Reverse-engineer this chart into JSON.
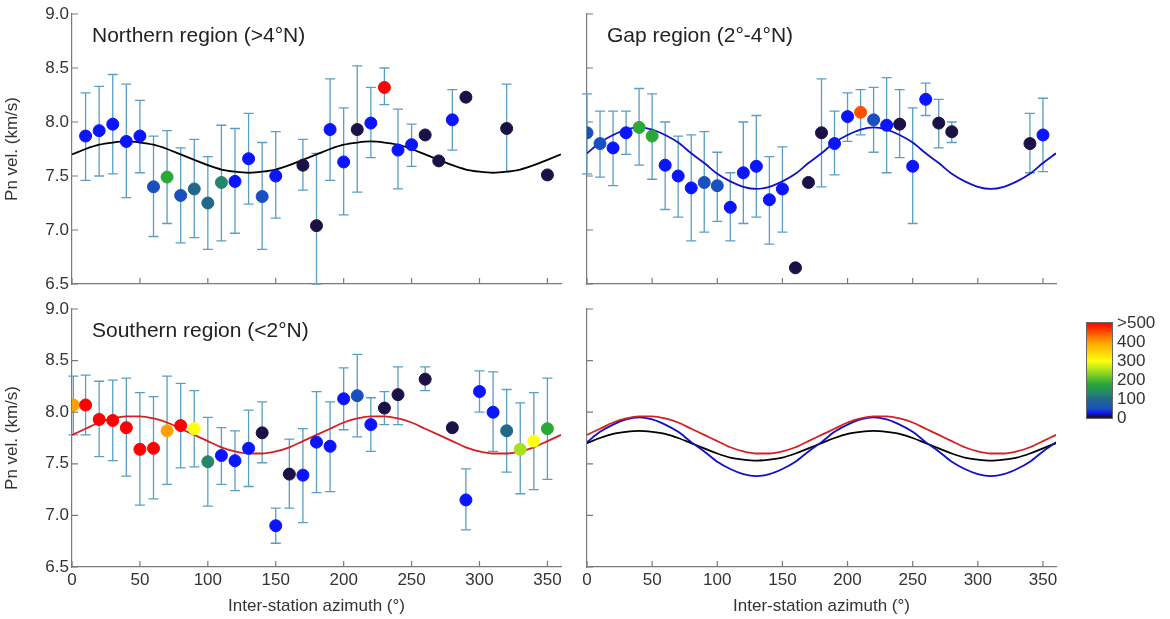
{
  "chart_data": [
    {
      "type": "scatter",
      "title": "Northern region (>4°N)",
      "ylabel": "Pn vel. (km/s)",
      "xlim": [
        0,
        360
      ],
      "xticks": [
        0,
        50,
        100,
        150,
        200,
        250,
        300,
        350
      ],
      "ylim": [
        6.5,
        9
      ],
      "yticks": [
        6.5,
        {
          "value": 7,
          "label": "7.0"
        },
        7.5,
        {
          "value": 8,
          "label": "8.0"
        },
        8.5,
        {
          "value": 9,
          "label": "9.0"
        }
      ],
      "tick_labels": "y",
      "series": [
        {
          "type": "scatter",
          "marker": "circle",
          "x": [
            10,
            20,
            30,
            40,
            50,
            60,
            70,
            80,
            90,
            100,
            110,
            120,
            130,
            140,
            150,
            170,
            180,
            190,
            200,
            210,
            220,
            230,
            240,
            250,
            260,
            270,
            280,
            290,
            320,
            350
          ],
          "values": [
            7.87,
            7.92,
            7.98,
            7.82,
            7.87,
            7.4,
            7.49,
            7.32,
            7.38,
            7.25,
            7.44,
            7.45,
            7.66,
            7.31,
            7.5,
            7.6,
            7.04,
            7.93,
            7.63,
            7.93,
            7.99,
            8.32,
            7.74,
            7.79,
            7.88,
            7.64,
            8.02,
            8.23,
            7.94,
            7.51
          ],
          "errors": [
            [
              7.46,
              8.27
            ],
            [
              7.5,
              8.33
            ],
            [
              7.52,
              8.44
            ],
            [
              7.3,
              8.35
            ],
            [
              7.53,
              8.2
            ],
            [
              6.94,
              7.87
            ],
            [
              7.06,
              7.92
            ],
            [
              6.88,
              7.76
            ],
            [
              6.93,
              7.84
            ],
            [
              6.82,
              7.68
            ],
            [
              6.9,
              7.97
            ],
            [
              6.97,
              7.94
            ],
            [
              7.24,
              8.08
            ],
            [
              6.82,
              7.81
            ],
            [
              7.11,
              7.91
            ],
            [
              7.37,
              7.84
            ],
            [
              6.5,
              7.71
            ],
            [
              7.46,
              8.4
            ],
            [
              7.14,
              8.13
            ],
            [
              7.35,
              8.52
            ],
            [
              7.67,
              8.32
            ],
            [
              8.16,
              8.5
            ],
            [
              7.38,
              8.12
            ],
            [
              7.59,
              7.98
            ],
            null,
            null,
            [
              7.74,
              8.3
            ],
            null,
            [
              7.54,
              8.35
            ],
            null
          ],
          "colors": [
            "#0a14ff",
            "#0a14ff",
            "#0a14ff",
            "#0a14ff",
            "#0a14ff",
            "#1850c0",
            "#2aa838",
            "#1850c0",
            "#22688a",
            "#22688a",
            "#22886a",
            "#0a14ff",
            "#0a14ff",
            "#1850c0",
            "#0a14ff",
            "#1b1146",
            "#1b1146",
            "#0a14ff",
            "#0a14ff",
            "#1b1146",
            "#0a14ff",
            "#ff0000",
            "#0a14ff",
            "#0a14ff",
            "#1b1146",
            "#1b1146",
            "#0a14ff",
            "#1b1146",
            "#1b1146",
            "#1b1146"
          ]
        },
        {
          "type": "line",
          "color": "#000000",
          "x": [
            0,
            10,
            20,
            30,
            40,
            50,
            60,
            70,
            80,
            90,
            100,
            110,
            120,
            130,
            140,
            150,
            160,
            170,
            180,
            190,
            200,
            210,
            220,
            230,
            240,
            250,
            260,
            270,
            280,
            290,
            300,
            310,
            320,
            330,
            340,
            350,
            360
          ],
          "values": [
            7.7,
            7.75,
            7.79,
            7.81,
            7.82,
            7.81,
            7.79,
            7.75,
            7.7,
            7.65,
            7.6,
            7.56,
            7.54,
            7.53,
            7.54,
            7.56,
            7.6,
            7.65,
            7.7,
            7.75,
            7.79,
            7.81,
            7.82,
            7.81,
            7.79,
            7.75,
            7.7,
            7.65,
            7.6,
            7.56,
            7.54,
            7.53,
            7.54,
            7.56,
            7.6,
            7.65,
            7.7
          ]
        }
      ]
    },
    {
      "type": "scatter",
      "title": "Gap region (2°-4°N)",
      "xlim": [
        0,
        360
      ],
      "xticks": [
        0,
        50,
        100,
        150,
        200,
        250,
        300,
        350
      ],
      "ylim": [
        6.5,
        9
      ],
      "yticks": [
        6.5,
        7,
        7.5,
        8,
        8.5,
        9
      ],
      "tick_labels": false,
      "clim": [
        0,
        500
      ],
      "cticks": [
        0,
        100,
        200,
        300,
        400,
        {
          "value": 500,
          "label": ">500"
        }
      ],
      "series": [
        {
          "type": "scatter",
          "marker": "circle",
          "x": [
            0,
            10,
            20,
            30,
            40,
            50,
            60,
            70,
            80,
            90,
            100,
            110,
            120,
            130,
            140,
            150,
            160,
            170,
            180,
            190,
            200,
            210,
            220,
            230,
            240,
            250,
            260,
            270,
            280,
            340,
            350
          ],
          "values": [
            7.9,
            7.8,
            7.76,
            7.9,
            7.95,
            7.87,
            7.6,
            7.5,
            7.39,
            7.44,
            7.41,
            7.21,
            7.53,
            7.59,
            7.28,
            7.38,
            6.65,
            7.44,
            7.9,
            7.8,
            8.05,
            8.09,
            8.02,
            7.97,
            7.98,
            7.59,
            8.21,
            7.99,
            7.91,
            7.8,
            7.88
          ],
          "errors": [
            [
              7.52,
              8.26
            ],
            [
              7.49,
              8.1
            ],
            [
              7.41,
              8.1
            ],
            [
              7.7,
              8.1
            ],
            [
              7.6,
              8.31
            ],
            [
              7.47,
              8.26
            ],
            [
              7.19,
              8.0
            ],
            [
              7.12,
              7.87
            ],
            [
              6.9,
              7.88
            ],
            [
              6.98,
              7.91
            ],
            [
              7.08,
              7.72
            ],
            [
              6.9,
              7.53
            ],
            [
              7.06,
              8.0
            ],
            [
              7.12,
              8.06
            ],
            [
              6.87,
              7.68
            ],
            [
              6.98,
              7.77
            ],
            null,
            null,
            [
              7.4,
              8.4
            ],
            [
              7.51,
              8.1
            ],
            [
              7.82,
              8.27
            ],
            [
              7.88,
              8.3
            ],
            [
              7.72,
              8.32
            ],
            [
              7.53,
              8.41
            ],
            [
              7.67,
              8.3
            ],
            [
              7.06,
              8.13
            ],
            [
              8.06,
              8.36
            ],
            [
              7.76,
              8.21
            ],
            [
              7.81,
              8.0
            ],
            [
              7.53,
              8.08
            ],
            [
              7.54,
              8.22
            ]
          ],
          "cvalues": [
            50,
            50,
            25,
            25,
            180,
            180,
            25,
            25,
            25,
            50,
            50,
            25,
            25,
            25,
            25,
            25,
            0,
            0,
            0,
            25,
            25,
            450,
            50,
            25,
            0,
            25,
            25,
            0,
            0,
            0,
            25
          ],
          "colors": [
            "#1850c0",
            "#1850c0",
            "#0a14ff",
            "#0a14ff",
            "#2aa838",
            "#2aa838",
            "#0a14ff",
            "#0a14ff",
            "#0a14ff",
            "#1850c0",
            "#1850c0",
            "#0a14ff",
            "#0a14ff",
            "#0a14ff",
            "#0a14ff",
            "#0a14ff",
            "#1b1146",
            "#1b1146",
            "#1b1146",
            "#0a14ff",
            "#0a14ff",
            "#ff5000",
            "#1850c0",
            "#0a14ff",
            "#1b1146",
            "#0a14ff",
            "#0a14ff",
            "#1b1146",
            "#1b1146",
            "#1b1146",
            "#0a14ff"
          ]
        },
        {
          "type": "line",
          "color": "#1010c8",
          "x": [
            0,
            10,
            20,
            30,
            40,
            50,
            60,
            70,
            80,
            90,
            100,
            110,
            120,
            130,
            140,
            150,
            160,
            170,
            180,
            190,
            200,
            210,
            220,
            230,
            240,
            250,
            260,
            270,
            280,
            290,
            300,
            310,
            320,
            330,
            340,
            350,
            360
          ],
          "values": [
            7.71,
            7.81,
            7.88,
            7.93,
            7.95,
            7.93,
            7.88,
            7.81,
            7.71,
            7.62,
            7.52,
            7.45,
            7.4,
            7.38,
            7.4,
            7.45,
            7.52,
            7.62,
            7.71,
            7.81,
            7.88,
            7.93,
            7.95,
            7.93,
            7.88,
            7.81,
            7.71,
            7.62,
            7.52,
            7.45,
            7.4,
            7.38,
            7.4,
            7.45,
            7.52,
            7.62,
            7.71
          ]
        }
      ]
    },
    {
      "type": "scatter",
      "title": "Southern region (<2°N)",
      "xlabel": "Inter-station azimuth (°)",
      "ylabel": "Pn vel. (km/s)",
      "xlim": [
        0,
        360
      ],
      "xticks": [
        0,
        50,
        100,
        150,
        200,
        250,
        300,
        350
      ],
      "ylim": [
        6.5,
        9
      ],
      "yticks": [
        6.5,
        {
          "value": 7,
          "label": "7.0"
        },
        7.5,
        {
          "value": 8,
          "label": "8.0"
        },
        8.5,
        {
          "value": 9,
          "label": "9.0"
        }
      ],
      "series": [
        {
          "type": "scatter",
          "marker": "circle",
          "x": [
            1,
            10,
            20,
            30,
            40,
            50,
            60,
            70,
            80,
            90,
            100,
            110,
            120,
            130,
            140,
            150,
            160,
            170,
            180,
            190,
            200,
            210,
            220,
            230,
            240,
            260,
            280,
            290,
            300,
            310,
            320,
            330,
            340,
            350
          ],
          "values": [
            8.07,
            8.07,
            7.93,
            7.92,
            7.85,
            7.64,
            7.65,
            7.82,
            7.87,
            7.84,
            7.52,
            7.58,
            7.53,
            7.65,
            7.8,
            6.9,
            7.4,
            7.39,
            7.71,
            7.67,
            8.13,
            8.16,
            7.88,
            8.04,
            8.17,
            8.32,
            7.85,
            7.15,
            8.2,
            8.0,
            7.82,
            7.64,
            7.72,
            7.84
          ],
          "errors": [
            [
              7.78,
              8.35
            ],
            [
              7.78,
              8.36
            ],
            [
              7.57,
              8.3
            ],
            [
              7.53,
              8.31
            ],
            [
              7.38,
              8.33
            ],
            [
              7.1,
              8.19
            ],
            [
              7.16,
              8.15
            ],
            [
              7.3,
              8.35
            ],
            [
              7.46,
              8.28
            ],
            [
              7.47,
              8.21
            ],
            [
              7.09,
              7.95
            ],
            [
              7.3,
              7.85
            ],
            [
              7.24,
              7.82
            ],
            [
              7.28,
              8.02
            ],
            [
              7.51,
              8.1
            ],
            [
              6.73,
              7.07
            ],
            [
              7.07,
              7.74
            ],
            [
              6.93,
              7.84
            ],
            [
              7.22,
              8.2
            ],
            [
              7.23,
              8.1
            ],
            [
              7.83,
              8.43
            ],
            [
              7.76,
              8.56
            ],
            [
              7.62,
              8.14
            ],
            [
              7.88,
              8.2
            ],
            [
              7.88,
              8.44
            ],
            [
              8.21,
              8.44
            ],
            null,
            [
              6.86,
              7.45
            ],
            [
              8.0,
              8.4
            ],
            [
              7.62,
              8.39
            ],
            [
              7.42,
              8.22
            ],
            [
              7.21,
              8.09
            ],
            [
              7.25,
              8.19
            ],
            [
              7.35,
              8.33
            ]
          ],
          "colors": [
            "#ffa000",
            "#ff0000",
            "#ff0000",
            "#ff0000",
            "#ff0000",
            "#ff0000",
            "#ff0000",
            "#ffa000",
            "#ff0000",
            "#ffff10",
            "#22886a",
            "#0a14ff",
            "#0a14ff",
            "#0a14ff",
            "#1b1146",
            "#0a14ff",
            "#1b1146",
            "#0a14ff",
            "#0a14ff",
            "#0a14ff",
            "#0a14ff",
            "#1850c0",
            "#0a14ff",
            "#1b1146",
            "#1b1146",
            "#1b1146",
            "#1b1146",
            "#0a14ff",
            "#0a14ff",
            "#0a14ff",
            "#22688a",
            "#a8e020",
            "#ffff10",
            "#2aa838"
          ]
        },
        {
          "type": "line",
          "color": "#d42020",
          "x": [
            0,
            10,
            20,
            30,
            40,
            50,
            60,
            70,
            80,
            90,
            100,
            110,
            120,
            130,
            140,
            150,
            160,
            170,
            180,
            190,
            200,
            210,
            220,
            230,
            240,
            250,
            260,
            270,
            280,
            290,
            300,
            310,
            320,
            330,
            340,
            350,
            360
          ],
          "values": [
            7.78,
            7.84,
            7.9,
            7.94,
            7.96,
            7.96,
            7.94,
            7.9,
            7.84,
            7.78,
            7.72,
            7.66,
            7.62,
            7.6,
            7.6,
            7.62,
            7.66,
            7.72,
            7.78,
            7.84,
            7.9,
            7.94,
            7.96,
            7.96,
            7.94,
            7.9,
            7.84,
            7.78,
            7.72,
            7.66,
            7.62,
            7.6,
            7.6,
            7.62,
            7.66,
            7.72,
            7.78
          ]
        }
      ]
    },
    {
      "type": "line",
      "xlabel": "Inter-station azimuth (°)",
      "xlim": [
        0,
        360
      ],
      "xticks": [
        0,
        50,
        100,
        150,
        200,
        250,
        300,
        350
      ],
      "ylim": [
        6.5,
        9
      ],
      "yticks": [
        6.5,
        7,
        7.5,
        8,
        8.5,
        9
      ],
      "tick_labels": "x",
      "series": [
        {
          "color": "#d42020",
          "x": [
            0,
            10,
            20,
            30,
            40,
            50,
            60,
            70,
            80,
            90,
            100,
            110,
            120,
            130,
            140,
            150,
            160,
            170,
            180,
            190,
            200,
            210,
            220,
            230,
            240,
            250,
            260,
            270,
            280,
            290,
            300,
            310,
            320,
            330,
            340,
            350,
            360
          ],
          "values": [
            7.78,
            7.84,
            7.9,
            7.94,
            7.96,
            7.96,
            7.94,
            7.9,
            7.84,
            7.78,
            7.72,
            7.66,
            7.62,
            7.6,
            7.6,
            7.62,
            7.66,
            7.72,
            7.78,
            7.84,
            7.9,
            7.94,
            7.96,
            7.96,
            7.94,
            7.9,
            7.84,
            7.78,
            7.72,
            7.66,
            7.62,
            7.6,
            7.6,
            7.62,
            7.66,
            7.72,
            7.78
          ]
        },
        {
          "color": "#1010c8",
          "x": [
            0,
            10,
            20,
            30,
            40,
            50,
            60,
            70,
            80,
            90,
            100,
            110,
            120,
            130,
            140,
            150,
            160,
            170,
            180,
            190,
            200,
            210,
            220,
            230,
            240,
            250,
            260,
            270,
            280,
            290,
            300,
            310,
            320,
            330,
            340,
            350,
            360
          ],
          "values": [
            7.71,
            7.81,
            7.88,
            7.93,
            7.95,
            7.93,
            7.88,
            7.81,
            7.71,
            7.62,
            7.52,
            7.45,
            7.4,
            7.38,
            7.4,
            7.45,
            7.52,
            7.62,
            7.71,
            7.81,
            7.88,
            7.93,
            7.95,
            7.93,
            7.88,
            7.81,
            7.71,
            7.62,
            7.52,
            7.45,
            7.4,
            7.38,
            7.4,
            7.45,
            7.52,
            7.62,
            7.71
          ]
        },
        {
          "color": "#000000",
          "x": [
            0,
            10,
            20,
            30,
            40,
            50,
            60,
            70,
            80,
            90,
            100,
            110,
            120,
            130,
            140,
            150,
            160,
            170,
            180,
            190,
            200,
            210,
            220,
            230,
            240,
            250,
            260,
            270,
            280,
            290,
            300,
            310,
            320,
            330,
            340,
            350,
            360
          ],
          "values": [
            7.7,
            7.75,
            7.79,
            7.81,
            7.82,
            7.81,
            7.79,
            7.75,
            7.7,
            7.65,
            7.6,
            7.56,
            7.54,
            7.53,
            7.54,
            7.56,
            7.6,
            7.65,
            7.7,
            7.75,
            7.79,
            7.81,
            7.82,
            7.81,
            7.79,
            7.75,
            7.7,
            7.65,
            7.6,
            7.56,
            7.54,
            7.53,
            7.54,
            7.56,
            7.6,
            7.65,
            7.7
          ]
        }
      ]
    }
  ]
}
